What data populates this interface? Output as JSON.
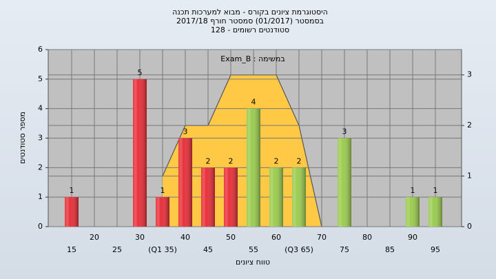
{
  "chart_data": {
    "type": "bar",
    "title_lines": [
      "היסטוגרמת ציונים בקורס - מבוא למערכות תכנה",
      "בסמסטר  (01/2017)  סמסטר חורף 2017/18",
      "סטודנטים רשומים - 128"
    ],
    "annotation": "במשימה : Exam_B",
    "ylabel": "מספר סטודנטים",
    "xlabel": "טווח ציונים",
    "categories": [
      "15",
      "20",
      "25",
      "30",
      "(Q1 35)",
      "40",
      "45",
      "50",
      "55",
      "60",
      "(Q3 65)",
      "70",
      "75",
      "80",
      "85",
      "90",
      "95"
    ],
    "values": [
      1,
      0,
      0,
      5,
      1,
      3,
      2,
      2,
      4,
      2,
      2,
      0,
      3,
      0,
      0,
      1,
      1
    ],
    "colors": [
      "#e8303a",
      "#e8303a",
      "#e8303a",
      "#e8303a",
      "#e8303a",
      "#e8303a",
      "#e8303a",
      "#e8303a",
      "#9ccc50",
      "#9ccc50",
      "#9ccc50",
      "#9ccc50",
      "#9ccc50",
      "#9ccc50",
      "#9ccc50",
      "#9ccc50",
      "#9ccc50"
    ],
    "area": {
      "values": [
        null,
        null,
        null,
        null,
        1,
        2,
        2,
        3,
        3,
        3,
        2,
        0,
        null,
        null,
        null,
        null,
        null
      ],
      "color": "#ffc845",
      "axis": "y2"
    },
    "ylim": [
      0,
      6
    ],
    "yticks": [
      0,
      1,
      2,
      3,
      4,
      5,
      6
    ],
    "y2lim": [
      0,
      3.5
    ],
    "y2ticks": [
      0,
      1,
      2,
      3
    ],
    "grid": true
  }
}
